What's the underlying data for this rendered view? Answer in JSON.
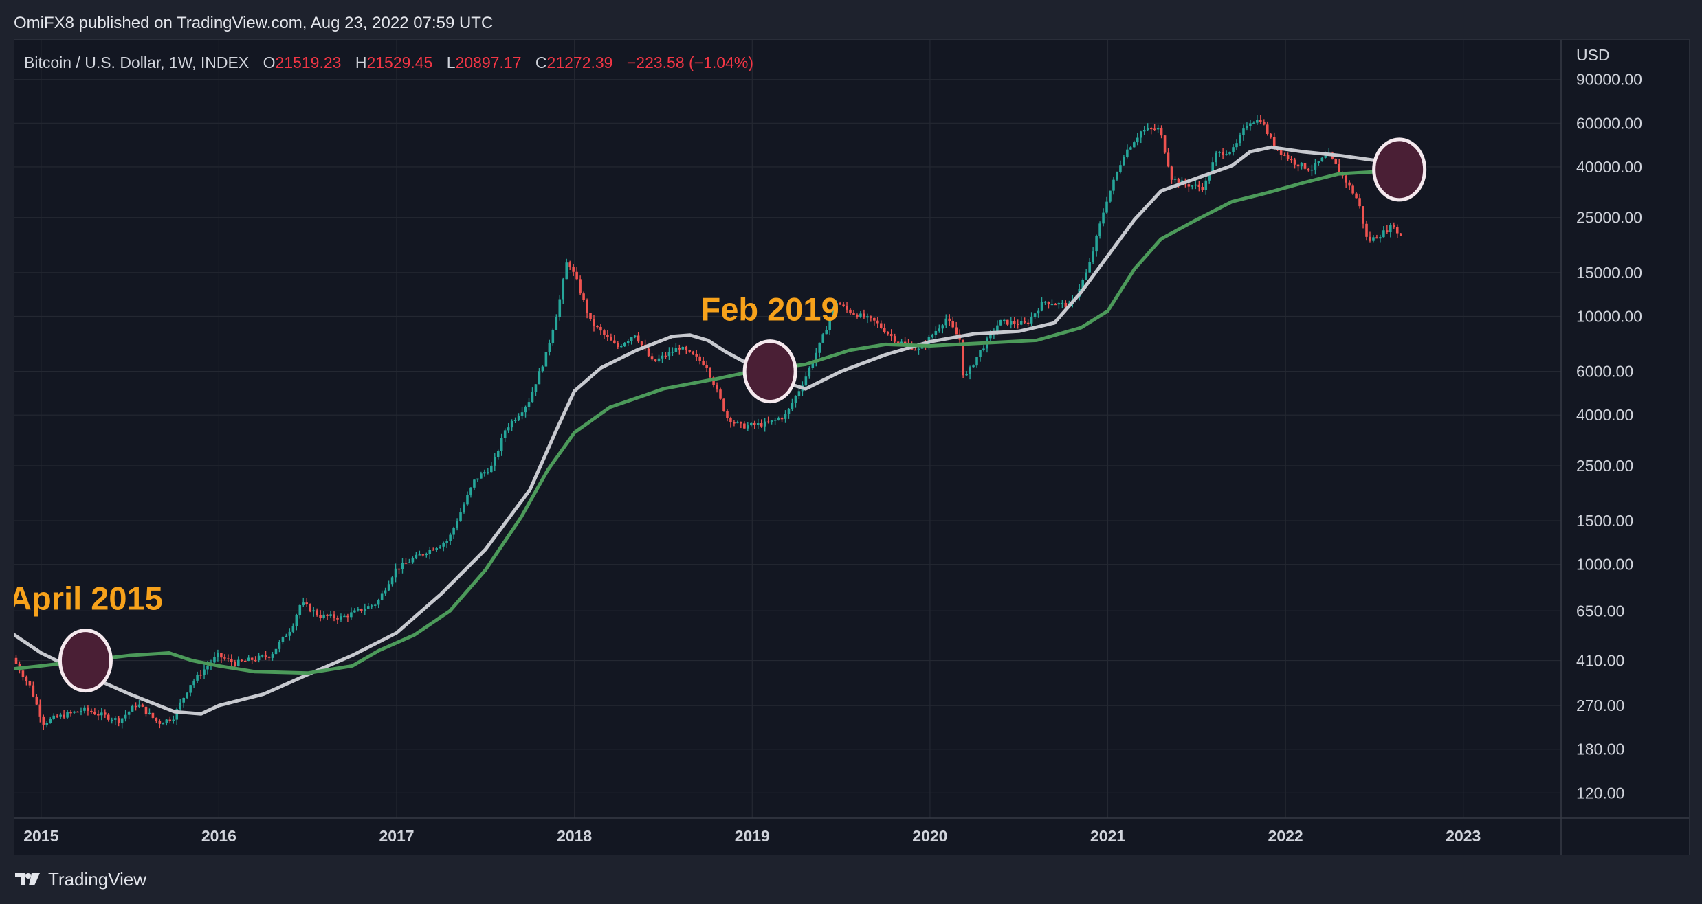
{
  "header": {
    "text": "OmiFX8 published on TradingView.com, Aug 23, 2022 07:59 UTC"
  },
  "legend": {
    "symbol": "Bitcoin / U.S. Dollar, 1W, INDEX",
    "o_label": "O",
    "o_value": "21519.23",
    "h_label": "H",
    "h_value": "21529.45",
    "l_label": "L",
    "l_value": "20897.17",
    "c_label": "C",
    "c_value": "21272.39",
    "change": "−223.58 (−1.04%)"
  },
  "footer": {
    "brand": "TradingView"
  },
  "colors": {
    "up": "#26a69a",
    "down": "#ef5350",
    "ma_gray": "#c7c9cf",
    "ma_green": "#4c9a5a",
    "annotation": "#f7a21b",
    "circle_fill": "#4a1f35",
    "circle_stroke": "#f5e9ee",
    "bg": "#131722",
    "grid": "#242832"
  },
  "chart_data": {
    "type": "candlestick",
    "title": "Bitcoin / U.S. Dollar, 1W, INDEX",
    "scale": "log",
    "y_unit": "USD",
    "ylim": [
      95,
      130000
    ],
    "y_ticks": [
      90000,
      60000,
      40000,
      25000,
      15000,
      10000,
      6000,
      4000,
      2500,
      1500,
      1000,
      650,
      410,
      270,
      180,
      120
    ],
    "y_tick_labels": [
      "90000.00",
      "60000.00",
      "40000.00",
      "25000.00",
      "15000.00",
      "10000.00",
      "6000.00",
      "4000.00",
      "2500.00",
      "1500.00",
      "1000.00",
      "650.00",
      "410.00",
      "270.00",
      "180.00",
      "120.00"
    ],
    "xlim": [
      2014.85,
      2023.55
    ],
    "x_ticks": [
      2015,
      2016,
      2017,
      2018,
      2019,
      2020,
      2021,
      2022,
      2023
    ],
    "x_tick_labels": [
      "2015",
      "2016",
      "2017",
      "2018",
      "2019",
      "2020",
      "2021",
      "2022",
      "2023"
    ],
    "price_path": [
      [
        2014.85,
        420
      ],
      [
        2014.95,
        320
      ],
      [
        2015.02,
        230
      ],
      [
        2015.08,
        240
      ],
      [
        2015.25,
        260
      ],
      [
        2015.45,
        235
      ],
      [
        2015.55,
        275
      ],
      [
        2015.67,
        230
      ],
      [
        2015.75,
        240
      ],
      [
        2015.85,
        330
      ],
      [
        2015.9,
        360
      ],
      [
        2016.0,
        430
      ],
      [
        2016.1,
        400
      ],
      [
        2016.3,
        430
      ],
      [
        2016.42,
        560
      ],
      [
        2016.47,
        700
      ],
      [
        2016.58,
        620
      ],
      [
        2016.7,
        610
      ],
      [
        2016.9,
        700
      ],
      [
        2017.0,
        950
      ],
      [
        2017.1,
        1050
      ],
      [
        2017.2,
        1150
      ],
      [
        2017.3,
        1250
      ],
      [
        2017.45,
        2200
      ],
      [
        2017.55,
        2500
      ],
      [
        2017.62,
        3500
      ],
      [
        2017.75,
        4500
      ],
      [
        2017.85,
        7000
      ],
      [
        2017.92,
        11000
      ],
      [
        2017.97,
        17000
      ],
      [
        2018.02,
        14000
      ],
      [
        2018.1,
        9500
      ],
      [
        2018.25,
        7500
      ],
      [
        2018.35,
        8500
      ],
      [
        2018.45,
        6500
      ],
      [
        2018.6,
        7500
      ],
      [
        2018.75,
        6400
      ],
      [
        2018.87,
        3900
      ],
      [
        2018.95,
        3600
      ],
      [
        2019.1,
        3700
      ],
      [
        2019.2,
        4000
      ],
      [
        2019.3,
        5500
      ],
      [
        2019.4,
        8000
      ],
      [
        2019.48,
        11500
      ],
      [
        2019.55,
        10500
      ],
      [
        2019.7,
        9500
      ],
      [
        2019.82,
        8000
      ],
      [
        2019.95,
        7300
      ],
      [
        2020.1,
        9800
      ],
      [
        2020.18,
        8000
      ],
      [
        2020.2,
        5500
      ],
      [
        2020.28,
        7000
      ],
      [
        2020.4,
        9500
      ],
      [
        2020.55,
        9300
      ],
      [
        2020.65,
        11500
      ],
      [
        2020.8,
        11000
      ],
      [
        2020.9,
        15500
      ],
      [
        2021.0,
        29000
      ],
      [
        2021.1,
        45000
      ],
      [
        2021.2,
        56000
      ],
      [
        2021.3,
        57000
      ],
      [
        2021.37,
        36000
      ],
      [
        2021.45,
        34000
      ],
      [
        2021.55,
        33000
      ],
      [
        2021.62,
        45000
      ],
      [
        2021.72,
        47000
      ],
      [
        2021.8,
        61000
      ],
      [
        2021.87,
        62000
      ],
      [
        2021.95,
        48000
      ],
      [
        2022.05,
        42000
      ],
      [
        2022.15,
        39000
      ],
      [
        2022.25,
        45000
      ],
      [
        2022.35,
        35000
      ],
      [
        2022.42,
        29000
      ],
      [
        2022.47,
        20000
      ],
      [
        2022.55,
        21500
      ],
      [
        2022.62,
        23500
      ],
      [
        2022.64,
        21272
      ]
    ],
    "series": [
      {
        "name": "",
        "color": "#c7c9cf",
        "points": [
          [
            2014.85,
            520
          ],
          [
            2015.0,
            440
          ],
          [
            2015.25,
            360
          ],
          [
            2015.5,
            300
          ],
          [
            2015.75,
            255
          ],
          [
            2015.9,
            250
          ],
          [
            2016.0,
            270
          ],
          [
            2016.25,
            300
          ],
          [
            2016.5,
            360
          ],
          [
            2016.75,
            430
          ],
          [
            2017.0,
            530
          ],
          [
            2017.25,
            760
          ],
          [
            2017.5,
            1150
          ],
          [
            2017.75,
            2000
          ],
          [
            2017.9,
            3500
          ],
          [
            2018.0,
            5000
          ],
          [
            2018.15,
            6200
          ],
          [
            2018.35,
            7300
          ],
          [
            2018.55,
            8300
          ],
          [
            2018.65,
            8400
          ],
          [
            2018.75,
            8000
          ],
          [
            2018.85,
            7200
          ],
          [
            2019.0,
            6300
          ],
          [
            2019.15,
            5500
          ],
          [
            2019.3,
            5100
          ],
          [
            2019.5,
            6000
          ],
          [
            2019.75,
            7000
          ],
          [
            2020.0,
            7900
          ],
          [
            2020.25,
            8500
          ],
          [
            2020.5,
            8700
          ],
          [
            2020.7,
            9400
          ],
          [
            2020.85,
            12500
          ],
          [
            2021.0,
            17500
          ],
          [
            2021.15,
            24500
          ],
          [
            2021.3,
            32000
          ],
          [
            2021.5,
            36000
          ],
          [
            2021.7,
            40500
          ],
          [
            2021.8,
            46000
          ],
          [
            2021.92,
            48000
          ],
          [
            2022.1,
            46000
          ],
          [
            2022.3,
            44500
          ],
          [
            2022.5,
            42500
          ],
          [
            2022.64,
            40000
          ]
        ]
      },
      {
        "name": "",
        "color": "#4c9a5a",
        "points": [
          [
            2014.85,
            380
          ],
          [
            2015.0,
            390
          ],
          [
            2015.25,
            410
          ],
          [
            2015.5,
            430
          ],
          [
            2015.72,
            440
          ],
          [
            2015.85,
            410
          ],
          [
            2016.0,
            390
          ],
          [
            2016.2,
            370
          ],
          [
            2016.5,
            365
          ],
          [
            2016.75,
            390
          ],
          [
            2016.9,
            450
          ],
          [
            2017.1,
            520
          ],
          [
            2017.3,
            650
          ],
          [
            2017.5,
            950
          ],
          [
            2017.7,
            1550
          ],
          [
            2017.85,
            2400
          ],
          [
            2018.0,
            3400
          ],
          [
            2018.2,
            4300
          ],
          [
            2018.5,
            5100
          ],
          [
            2018.8,
            5600
          ],
          [
            2019.0,
            6000
          ],
          [
            2019.3,
            6400
          ],
          [
            2019.55,
            7300
          ],
          [
            2019.75,
            7700
          ],
          [
            2020.0,
            7600
          ],
          [
            2020.3,
            7800
          ],
          [
            2020.6,
            8000
          ],
          [
            2020.85,
            9000
          ],
          [
            2021.0,
            10500
          ],
          [
            2021.15,
            15500
          ],
          [
            2021.3,
            20500
          ],
          [
            2021.5,
            24500
          ],
          [
            2021.7,
            29000
          ],
          [
            2021.9,
            31500
          ],
          [
            2022.1,
            34500
          ],
          [
            2022.3,
            37500
          ],
          [
            2022.5,
            38200
          ],
          [
            2022.64,
            38500
          ]
        ]
      }
    ],
    "annotations": [
      {
        "text": "April 2015",
        "x": 2015.25,
        "y": 410
      },
      {
        "text": "Feb 2019",
        "x": 2019.1,
        "y": 6000
      },
      {
        "text": "",
        "x": 2022.64,
        "y": 39000
      }
    ]
  }
}
